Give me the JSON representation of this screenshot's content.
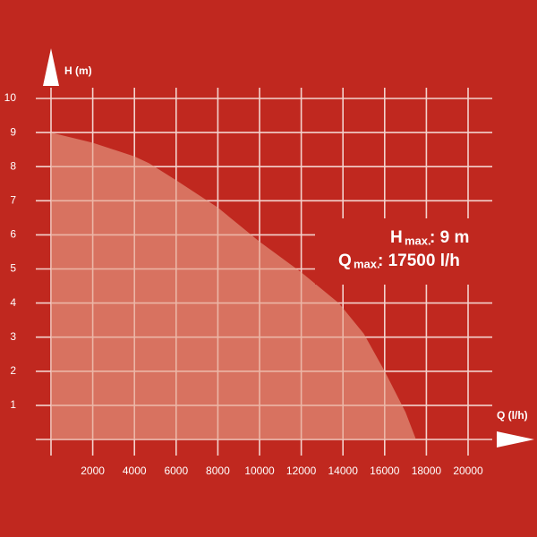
{
  "chart_data": {
    "type": "area",
    "x_label": "Q (l/h)",
    "y_label": "H (m)",
    "x": [
      0,
      2000,
      4000,
      4700,
      6000,
      8000,
      10000,
      12000,
      13800,
      15000,
      16000,
      17000,
      17500
    ],
    "values": [
      9,
      8.7,
      8.3,
      8.1,
      7.6,
      6.8,
      5.8,
      4.9,
      4,
      3.1,
      2,
      0.8,
      0
    ],
    "color": "#e8a48c",
    "xlim": [
      0,
      20000
    ],
    "ylim": [
      0,
      10
    ],
    "xticks": [
      2000,
      4000,
      6000,
      8000,
      10000,
      12000,
      14000,
      16000,
      18000,
      20000
    ],
    "yticks": [
      1,
      2,
      3,
      4,
      5,
      6,
      7,
      8,
      9,
      10
    ],
    "grid": true,
    "annotations": [
      {
        "symbol": "H",
        "subscript": "max.",
        "text": ": 9 m"
      },
      {
        "symbol": "Q",
        "subscript": "max.",
        "text": ": 17500 l/h"
      }
    ]
  }
}
